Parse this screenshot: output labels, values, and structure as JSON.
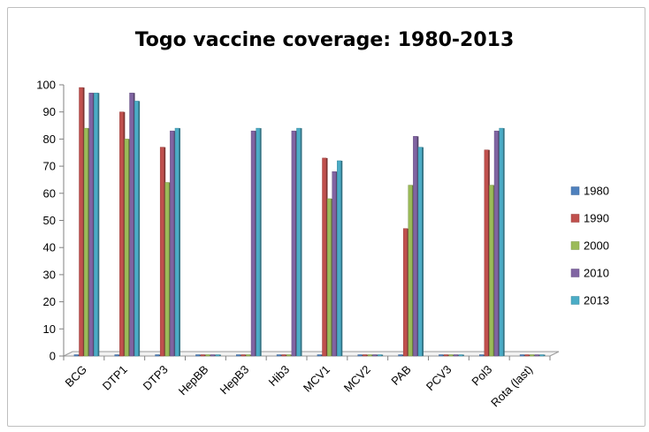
{
  "chart_data": {
    "type": "bar",
    "title": "Togo vaccine coverage: 1980-2013",
    "xlabel": "",
    "ylabel": "",
    "ylim": [
      0,
      100
    ],
    "yticks": [
      0,
      10,
      20,
      30,
      40,
      50,
      60,
      70,
      80,
      90,
      100
    ],
    "grid": false,
    "legend_position": "right",
    "categories": [
      "BCG",
      "DTP1",
      "DTP3",
      "HepBB",
      "HepB3",
      "Hib3",
      "MCV1",
      "MCV2",
      "PAB",
      "PCV3",
      "Pol3",
      "Rota (last)"
    ],
    "series": [
      {
        "name": "1980",
        "color": "#4f81bd",
        "values": [
          0,
          0,
          0,
          0,
          0,
          0,
          0,
          0,
          0,
          0,
          0,
          0
        ]
      },
      {
        "name": "1990",
        "color": "#c0504d",
        "values": [
          99,
          90,
          77,
          0,
          0,
          0,
          73,
          0,
          47,
          0,
          76,
          0
        ]
      },
      {
        "name": "2000",
        "color": "#9bbb59",
        "values": [
          84,
          80,
          64,
          0,
          0,
          0,
          58,
          0,
          63,
          0,
          63,
          0
        ]
      },
      {
        "name": "2010",
        "color": "#8064a2",
        "values": [
          97,
          97,
          83,
          0,
          83,
          83,
          68,
          0,
          81,
          0,
          83,
          0
        ]
      },
      {
        "name": "2013",
        "color": "#4bacc6",
        "values": [
          97,
          94,
          84,
          0,
          84,
          84,
          72,
          0,
          77,
          0,
          84,
          0
        ]
      }
    ]
  }
}
